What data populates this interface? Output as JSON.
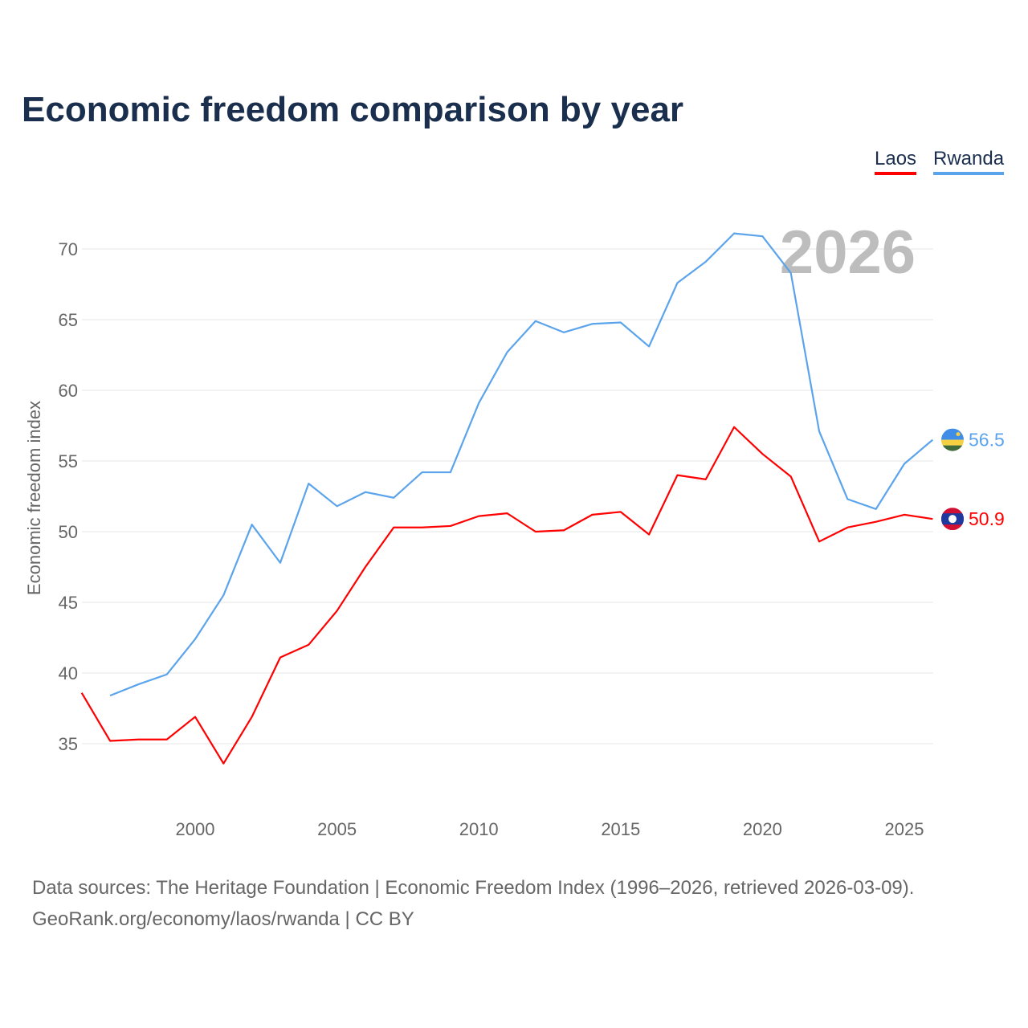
{
  "title": "Economic freedom comparison by year",
  "legend": [
    {
      "label": "Laos",
      "color": "#ff0000"
    },
    {
      "label": "Rwanda",
      "color": "#5ba4ec"
    }
  ],
  "footer": {
    "line1": "Data sources: The Heritage Foundation | Economic Freedom Index (1996–2026, retrieved 2026-03-09).",
    "line2": "GeoRank.org/economy/laos/rwanda | CC BY"
  },
  "chart_data": {
    "type": "line",
    "title": "Economic freedom comparison by year",
    "ylabel": "Economic freedom index",
    "xlabel": "",
    "year_watermark": "2026",
    "xlim": [
      1996,
      2026
    ],
    "ylim": [
      30.5,
      73
    ],
    "xticks": [
      2000,
      2005,
      2010,
      2015,
      2020,
      2025
    ],
    "yticks": [
      35,
      40,
      45,
      50,
      55,
      60,
      65,
      70
    ],
    "grid": true,
    "legend_position": "top-right",
    "series": [
      {
        "name": "Laos",
        "color": "#ff0000",
        "end_label": "50.9",
        "flag": "laos-flag",
        "x": [
          1996,
          1997,
          1998,
          1999,
          2000,
          2001,
          2002,
          2003,
          2004,
          2005,
          2006,
          2007,
          2008,
          2009,
          2010,
          2011,
          2012,
          2013,
          2014,
          2015,
          2016,
          2017,
          2018,
          2019,
          2020,
          2021,
          2022,
          2023,
          2024,
          2025,
          2026
        ],
        "values": [
          38.6,
          35.2,
          35.3,
          35.3,
          36.9,
          33.6,
          36.9,
          41.1,
          42.0,
          44.4,
          47.5,
          50.3,
          50.3,
          50.4,
          51.1,
          51.3,
          50.0,
          50.1,
          51.2,
          51.4,
          49.8,
          54.0,
          53.7,
          57.4,
          55.5,
          53.9,
          49.3,
          50.3,
          50.7,
          51.2,
          50.9
        ]
      },
      {
        "name": "Rwanda",
        "color": "#5ba4ec",
        "end_label": "56.5",
        "flag": "rwanda-flag",
        "x": [
          1997,
          1998,
          1999,
          2000,
          2001,
          2002,
          2003,
          2004,
          2005,
          2006,
          2007,
          2008,
          2009,
          2010,
          2011,
          2012,
          2013,
          2014,
          2015,
          2016,
          2017,
          2018,
          2019,
          2020,
          2021,
          2022,
          2023,
          2024,
          2025,
          2026
        ],
        "values": [
          38.4,
          39.2,
          39.9,
          42.4,
          45.5,
          50.5,
          47.8,
          53.4,
          51.8,
          52.8,
          52.4,
          54.2,
          54.2,
          59.1,
          62.7,
          64.9,
          64.1,
          64.7,
          64.8,
          63.1,
          67.6,
          69.1,
          71.1,
          70.9,
          68.3,
          57.1,
          52.3,
          51.6,
          54.8,
          56.5
        ]
      }
    ]
  }
}
